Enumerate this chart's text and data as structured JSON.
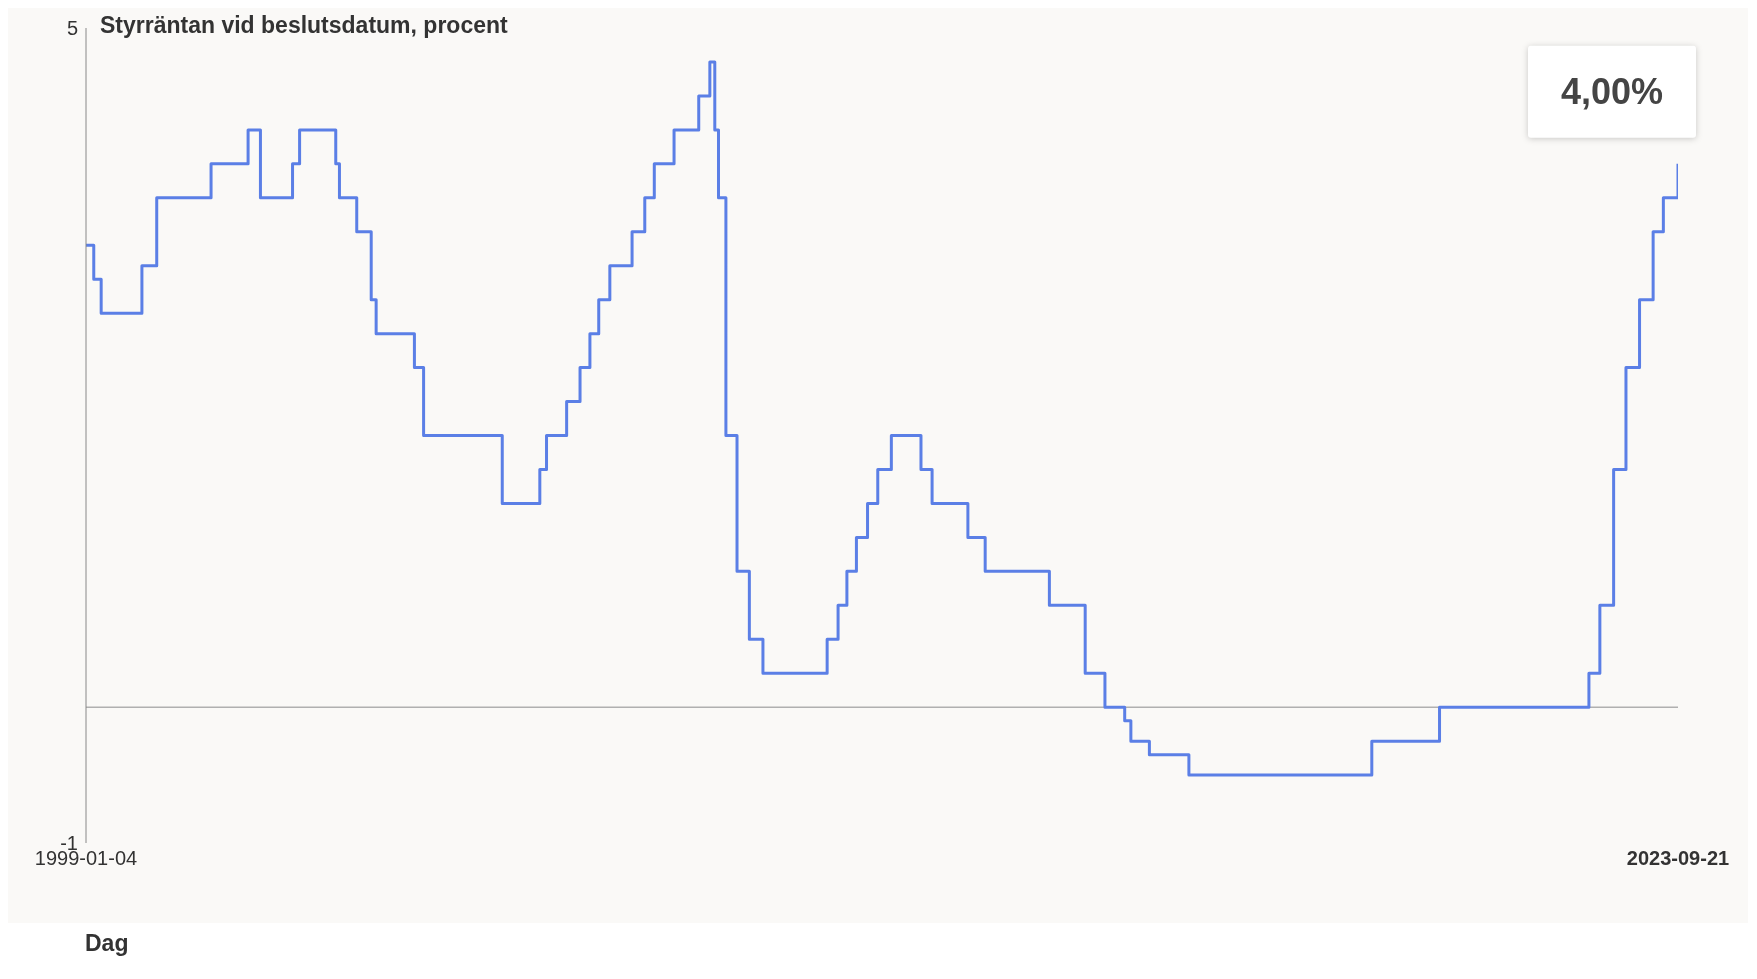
{
  "chart_data": {
    "type": "step",
    "title": "Styrräntan vid beslutsdatum, procent",
    "xlabel": "Dag",
    "x": [
      "1999-01-04",
      "1999-02-17",
      "1999-03-31",
      "1999-11-17",
      "2000-02-09",
      "2000-12-13",
      "2001-07-11",
      "2001-09-19",
      "2002-03-20",
      "2002-04-29",
      "2002-11-20",
      "2002-12-11",
      "2003-03-19",
      "2003-06-09",
      "2003-07-07",
      "2004-02-09",
      "2004-04-01",
      "2005-06-21",
      "2006-01-20",
      "2006-02-27",
      "2006-06-21",
      "2006-09-05",
      "2006-10-31",
      "2006-12-20",
      "2007-02-21",
      "2007-06-27",
      "2007-09-07",
      "2007-10-31",
      "2008-02-20",
      "2008-07-09",
      "2008-09-10",
      "2008-10-08",
      "2008-10-29",
      "2008-12-10",
      "2009-02-11",
      "2009-04-22",
      "2009-07-08",
      "2010-07-07",
      "2010-09-07",
      "2010-10-27",
      "2010-12-20",
      "2011-02-21",
      "2011-04-20",
      "2011-07-06",
      "2011-12-21",
      "2012-02-22",
      "2012-09-12",
      "2012-12-19",
      "2013-12-18",
      "2014-07-09",
      "2014-10-29",
      "2015-02-18",
      "2015-03-25",
      "2015-07-08",
      "2016-02-17",
      "2018-12-20",
      "2020-01-08",
      "2022-05-04",
      "2022-07-05",
      "2022-09-21",
      "2022-11-30",
      "2023-02-15",
      "2023-05-03",
      "2023-06-30",
      "2023-09-21"
    ],
    "series": [
      {
        "color": "#5b7fe6",
        "values": [
          3.4,
          3.15,
          2.9,
          3.25,
          3.75,
          4.0,
          4.25,
          3.75,
          4.0,
          4.25,
          4.0,
          3.75,
          3.5,
          3.0,
          2.75,
          2.5,
          2.0,
          1.5,
          1.75,
          2.0,
          2.25,
          2.5,
          2.75,
          3.0,
          3.25,
          3.5,
          3.75,
          4.0,
          4.25,
          4.5,
          4.75,
          4.25,
          3.75,
          2.0,
          1.0,
          0.5,
          0.25,
          0.5,
          0.75,
          1.0,
          1.25,
          1.5,
          1.75,
          2.0,
          1.75,
          1.5,
          1.25,
          1.0,
          0.75,
          0.25,
          0.0,
          -0.1,
          -0.25,
          -0.35,
          -0.5,
          -0.25,
          0.0,
          0.25,
          0.75,
          1.75,
          2.5,
          3.0,
          3.5,
          3.75,
          4.0
        ]
      }
    ],
    "xlim": [
      "1999-01-04",
      "2023-09-21"
    ],
    "xticks": [
      {
        "value": "1999-01-04",
        "label": "1999-01-04"
      },
      {
        "value": "2023-09-21",
        "label": "2023-09-21"
      }
    ],
    "ylim": [
      -1,
      5
    ],
    "yticks": [
      -1,
      5
    ],
    "ref_lines": [
      {
        "axis": "y",
        "value": 0,
        "color": "#b0b0b0"
      }
    ],
    "annotations": [
      {
        "text": "4,00%",
        "x": "2023-09-21",
        "y": 4
      }
    ],
    "line_style": "solid",
    "marker": "none"
  }
}
